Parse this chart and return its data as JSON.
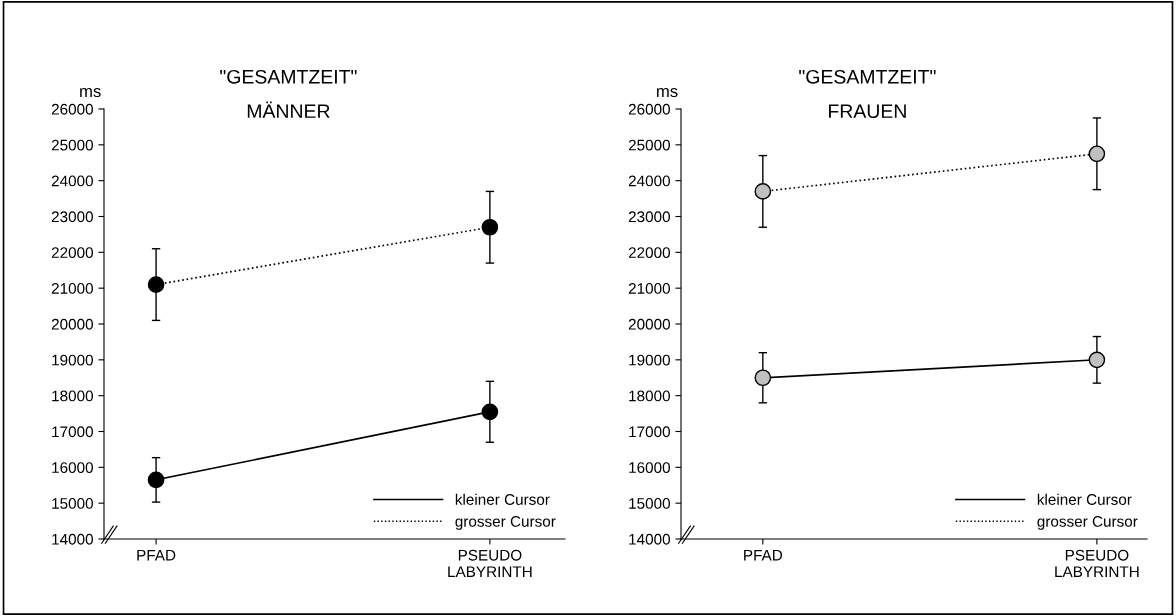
{
  "chart_data": [
    {
      "type": "line",
      "title": "\"GESAMTZEIT\"",
      "subtitle": "MÄNNER",
      "ylabel": "ms",
      "categories": [
        "PFAD",
        "PSEUDO\nLABYRINTH"
      ],
      "ylim": [
        14000,
        26000
      ],
      "yticks": [
        14000,
        15000,
        16000,
        17000,
        18000,
        19000,
        20000,
        21000,
        22000,
        23000,
        24000,
        25000,
        26000
      ],
      "marker": "circle",
      "legend": "bottom right",
      "grid": false,
      "series": [
        {
          "name": "kleiner Cursor",
          "color": "#000000",
          "line_style": "solid",
          "values": [
            15650,
            17550
          ],
          "errors": [
            620,
            850
          ]
        },
        {
          "name": "grosser Cursor",
          "color": "#000000",
          "line_style": "dotted",
          "values": [
            21100,
            22700
          ],
          "errors": [
            1000,
            1000
          ]
        }
      ]
    },
    {
      "type": "line",
      "title": "\"GESAMTZEIT\"",
      "subtitle": "FRAUEN",
      "ylabel": "ms",
      "categories": [
        "PFAD",
        "PSEUDO\nLABYRINTH"
      ],
      "ylim": [
        14000,
        26000
      ],
      "yticks": [
        14000,
        15000,
        16000,
        17000,
        18000,
        19000,
        20000,
        21000,
        22000,
        23000,
        24000,
        25000,
        26000
      ],
      "marker": "circle",
      "legend": "bottom right",
      "grid": false,
      "series": [
        {
          "name": "kleiner Cursor",
          "color": "#c0c0c0",
          "line_style": "solid",
          "values": [
            18500,
            19000
          ],
          "errors": [
            700,
            650
          ]
        },
        {
          "name": "grosser Cursor",
          "color": "#c0c0c0",
          "line_style": "dotted",
          "values": [
            23700,
            24750
          ],
          "errors": [
            1000,
            1000
          ]
        }
      ]
    }
  ]
}
